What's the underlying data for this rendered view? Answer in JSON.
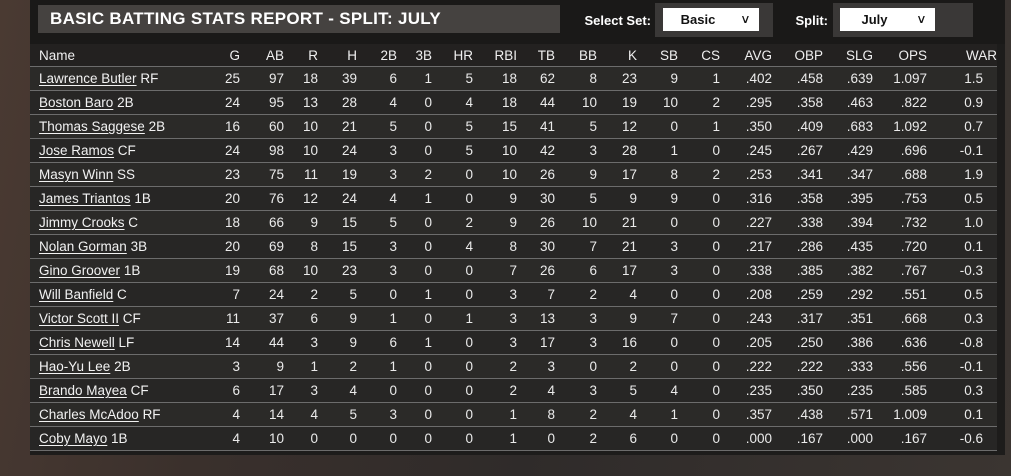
{
  "header": {
    "title": "BASIC BATTING STATS REPORT - SPLIT: JULY",
    "select_set_label": "Select Set:",
    "select_set_value": "Basic",
    "split_label": "Split:",
    "split_value": "July",
    "dropdown_chevron": "∨"
  },
  "colors": {
    "page_background": "#3a302c",
    "panel_background": "#1d1c1b",
    "title_bar": "#454240",
    "row_odd": "#2b2a28",
    "row_even": "#272625",
    "row_separator": "#6c6c6c",
    "dropdown_background": "#ffffff",
    "text": "#ebebeb"
  },
  "table": {
    "columns": [
      "Name",
      "G",
      "AB",
      "R",
      "H",
      "2B",
      "3B",
      "HR",
      "RBI",
      "TB",
      "BB",
      "K",
      "SB",
      "CS",
      "AVG",
      "OBP",
      "SLG",
      "OPS",
      "WAR"
    ],
    "rows": [
      {
        "name": "Lawrence Butler",
        "pos": "RF",
        "stats": [
          "25",
          "97",
          "18",
          "39",
          "6",
          "1",
          "5",
          "18",
          "62",
          "8",
          "23",
          "9",
          "1",
          ".402",
          ".458",
          ".639",
          "1.097",
          "1.5"
        ]
      },
      {
        "name": "Boston Baro",
        "pos": "2B",
        "stats": [
          "24",
          "95",
          "13",
          "28",
          "4",
          "0",
          "4",
          "18",
          "44",
          "10",
          "19",
          "10",
          "2",
          ".295",
          ".358",
          ".463",
          ".822",
          "0.9"
        ]
      },
      {
        "name": "Thomas Saggese",
        "pos": "2B",
        "stats": [
          "16",
          "60",
          "10",
          "21",
          "5",
          "0",
          "5",
          "15",
          "41",
          "5",
          "12",
          "0",
          "1",
          ".350",
          ".409",
          ".683",
          "1.092",
          "0.7"
        ]
      },
      {
        "name": "Jose Ramos",
        "pos": "CF",
        "stats": [
          "24",
          "98",
          "10",
          "24",
          "3",
          "0",
          "5",
          "10",
          "42",
          "3",
          "28",
          "1",
          "0",
          ".245",
          ".267",
          ".429",
          ".696",
          "-0.1"
        ]
      },
      {
        "name": "Masyn Winn",
        "pos": "SS",
        "stats": [
          "23",
          "75",
          "11",
          "19",
          "3",
          "2",
          "0",
          "10",
          "26",
          "9",
          "17",
          "8",
          "2",
          ".253",
          ".341",
          ".347",
          ".688",
          "1.9"
        ]
      },
      {
        "name": "James Triantos",
        "pos": "1B",
        "stats": [
          "20",
          "76",
          "12",
          "24",
          "4",
          "1",
          "0",
          "9",
          "30",
          "5",
          "9",
          "9",
          "0",
          ".316",
          ".358",
          ".395",
          ".753",
          "0.5"
        ]
      },
      {
        "name": "Jimmy Crooks",
        "pos": "C",
        "stats": [
          "18",
          "66",
          "9",
          "15",
          "5",
          "0",
          "2",
          "9",
          "26",
          "10",
          "21",
          "0",
          "0",
          ".227",
          ".338",
          ".394",
          ".732",
          "1.0"
        ]
      },
      {
        "name": "Nolan Gorman",
        "pos": "3B",
        "stats": [
          "20",
          "69",
          "8",
          "15",
          "3",
          "0",
          "4",
          "8",
          "30",
          "7",
          "21",
          "3",
          "0",
          ".217",
          ".286",
          ".435",
          ".720",
          "0.1"
        ]
      },
      {
        "name": "Gino Groover",
        "pos": "1B",
        "stats": [
          "19",
          "68",
          "10",
          "23",
          "3",
          "0",
          "0",
          "7",
          "26",
          "6",
          "17",
          "3",
          "0",
          ".338",
          ".385",
          ".382",
          ".767",
          "-0.3"
        ]
      },
      {
        "name": "Will Banfield",
        "pos": "C",
        "stats": [
          "7",
          "24",
          "2",
          "5",
          "0",
          "1",
          "0",
          "3",
          "7",
          "2",
          "4",
          "0",
          "0",
          ".208",
          ".259",
          ".292",
          ".551",
          "0.5"
        ]
      },
      {
        "name": "Victor Scott II",
        "pos": "CF",
        "stats": [
          "11",
          "37",
          "6",
          "9",
          "1",
          "0",
          "1",
          "3",
          "13",
          "3",
          "9",
          "7",
          "0",
          ".243",
          ".317",
          ".351",
          ".668",
          "0.3"
        ]
      },
      {
        "name": "Chris Newell",
        "pos": "LF",
        "stats": [
          "14",
          "44",
          "3",
          "9",
          "6",
          "1",
          "0",
          "3",
          "17",
          "3",
          "16",
          "0",
          "0",
          ".205",
          ".250",
          ".386",
          ".636",
          "-0.8"
        ]
      },
      {
        "name": "Hao-Yu Lee",
        "pos": "2B",
        "stats": [
          "3",
          "9",
          "1",
          "2",
          "1",
          "0",
          "0",
          "2",
          "3",
          "0",
          "2",
          "0",
          "0",
          ".222",
          ".222",
          ".333",
          ".556",
          "-0.1"
        ]
      },
      {
        "name": "Brando Mayea",
        "pos": "CF",
        "stats": [
          "6",
          "17",
          "3",
          "4",
          "0",
          "0",
          "0",
          "2",
          "4",
          "3",
          "5",
          "4",
          "0",
          ".235",
          ".350",
          ".235",
          ".585",
          "0.3"
        ]
      },
      {
        "name": "Charles McAdoo",
        "pos": "RF",
        "stats": [
          "4",
          "14",
          "4",
          "5",
          "3",
          "0",
          "0",
          "1",
          "8",
          "2",
          "4",
          "1",
          "0",
          ".357",
          ".438",
          ".571",
          "1.009",
          "0.1"
        ]
      },
      {
        "name": "Coby Mayo",
        "pos": "1B",
        "stats": [
          "4",
          "10",
          "0",
          "0",
          "0",
          "0",
          "0",
          "1",
          "0",
          "2",
          "6",
          "0",
          "0",
          ".000",
          ".167",
          ".000",
          ".167",
          "-0.6"
        ]
      }
    ]
  }
}
